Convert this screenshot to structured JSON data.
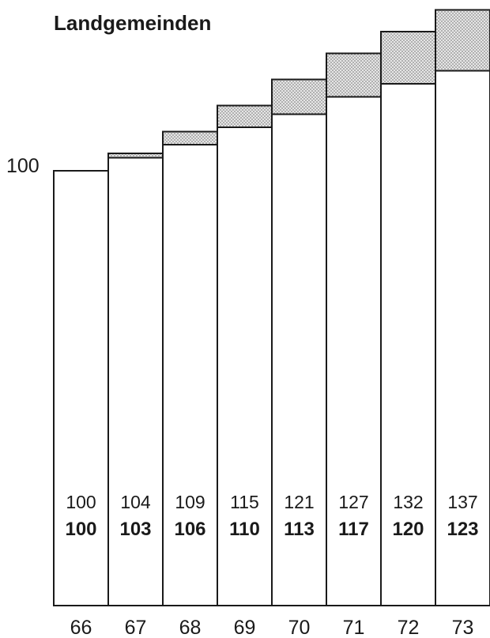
{
  "chart_data": {
    "type": "bar",
    "title": "Landgemeinden",
    "reference_label": "100",
    "categories": [
      "66",
      "67",
      "68",
      "69",
      "70",
      "71",
      "72",
      "73"
    ],
    "series": [
      {
        "values": [
          100,
          104,
          109,
          115,
          121,
          127,
          132,
          137
        ]
      },
      {
        "values": [
          100,
          103,
          106,
          110,
          113,
          117,
          120,
          123
        ]
      }
    ],
    "top_labels": [
      "100",
      "104",
      "109",
      "115",
      "121",
      "127",
      "132",
      "137"
    ],
    "bottom_labels": [
      "100",
      "103",
      "106",
      "110",
      "113",
      "117",
      "120",
      "123"
    ],
    "ylim": [
      0,
      137
    ],
    "grid": false,
    "colors": {
      "stroke": "#1a1a1a",
      "stipple": "#9a9a9a"
    }
  }
}
